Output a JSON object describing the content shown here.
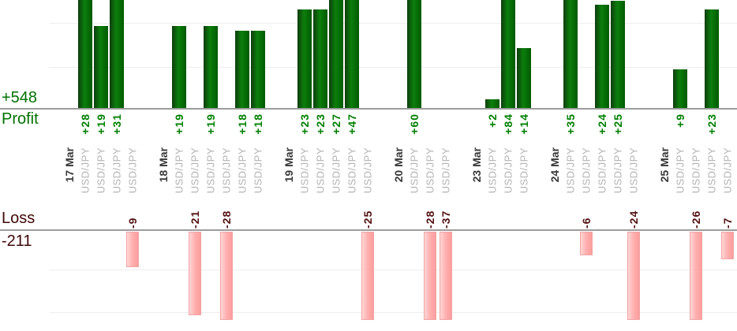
{
  "chart_data": {
    "type": "bar",
    "title": "",
    "legend_position": "none",
    "profit_section": {
      "total_label": "+548",
      "axis_label": "Profit",
      "gridline_interval": 10,
      "visible_axis_max": 25,
      "bars_overflow_clipped_at_top": true
    },
    "loss_section": {
      "axis_label": "Loss",
      "total_label": "-211",
      "gridline_interval": 10,
      "visible_axis_min": -22,
      "bars_overflow_clipped_at_bottom": true
    },
    "groups": [
      {
        "date": "17 Mar",
        "trades": [
          {
            "symbol": "USD/JPY",
            "value": 28
          },
          {
            "symbol": "USD/JPY",
            "value": 19
          },
          {
            "symbol": "USD/JPY",
            "value": 31
          },
          {
            "symbol": "USD/JPY",
            "value": -9
          }
        ]
      },
      {
        "date": "18 Mar",
        "trades": [
          {
            "symbol": "USD/JPY",
            "value": 19
          },
          {
            "symbol": "USD/JPY",
            "value": -21
          },
          {
            "symbol": "USD/JPY",
            "value": 19
          },
          {
            "symbol": "USD/JPY",
            "value": -28
          },
          {
            "symbol": "USD/JPY",
            "value": 18
          },
          {
            "symbol": "USD/JPY",
            "value": 18
          }
        ]
      },
      {
        "date": "19 Mar",
        "trades": [
          {
            "symbol": "USD/JPY",
            "value": 23
          },
          {
            "symbol": "USD/JPY",
            "value": 23
          },
          {
            "symbol": "USD/JPY",
            "value": 27
          },
          {
            "symbol": "USD/JPY",
            "value": 47
          },
          {
            "symbol": "USD/JPY",
            "value": -25
          }
        ]
      },
      {
        "date": "20 Mar",
        "trades": [
          {
            "symbol": "USD/JPY",
            "value": 60
          },
          {
            "symbol": "USD/JPY",
            "value": -28
          },
          {
            "symbol": "USD/JPY",
            "value": -37
          }
        ]
      },
      {
        "date": "23 Mar",
        "trades": [
          {
            "symbol": "USD/JPY",
            "value": 2
          },
          {
            "symbol": "USD/JPY",
            "value": 84
          },
          {
            "symbol": "USD/JPY",
            "value": 14
          }
        ]
      },
      {
        "date": "24 Mar",
        "trades": [
          {
            "symbol": "USD/JPY",
            "value": 35
          },
          {
            "symbol": "USD/JPY",
            "value": -6
          },
          {
            "symbol": "USD/JPY",
            "value": 24
          },
          {
            "symbol": "USD/JPY",
            "value": 25
          },
          {
            "symbol": "USD/JPY",
            "value": -24
          }
        ]
      },
      {
        "date": "25 Mar",
        "trades": [
          {
            "symbol": "USD/JPY",
            "value": 9
          },
          {
            "symbol": "USD/JPY",
            "value": -26
          },
          {
            "symbol": "USD/JPY",
            "value": 23
          },
          {
            "symbol": "USD/JPY",
            "value": -7
          }
        ]
      }
    ],
    "colors": {
      "profit_bar": "#0c7f0c",
      "loss_bar": "#ffafaf",
      "profit_header_text": "#007100",
      "profit_value_text": "#008000",
      "loss_header_text": "#3f0808",
      "loss_value_text": "#521010",
      "date_text": "#383838",
      "symbol_text": "#b3b3b3",
      "axis_line": "#9c9c9c",
      "gridline": "#ededed"
    }
  }
}
